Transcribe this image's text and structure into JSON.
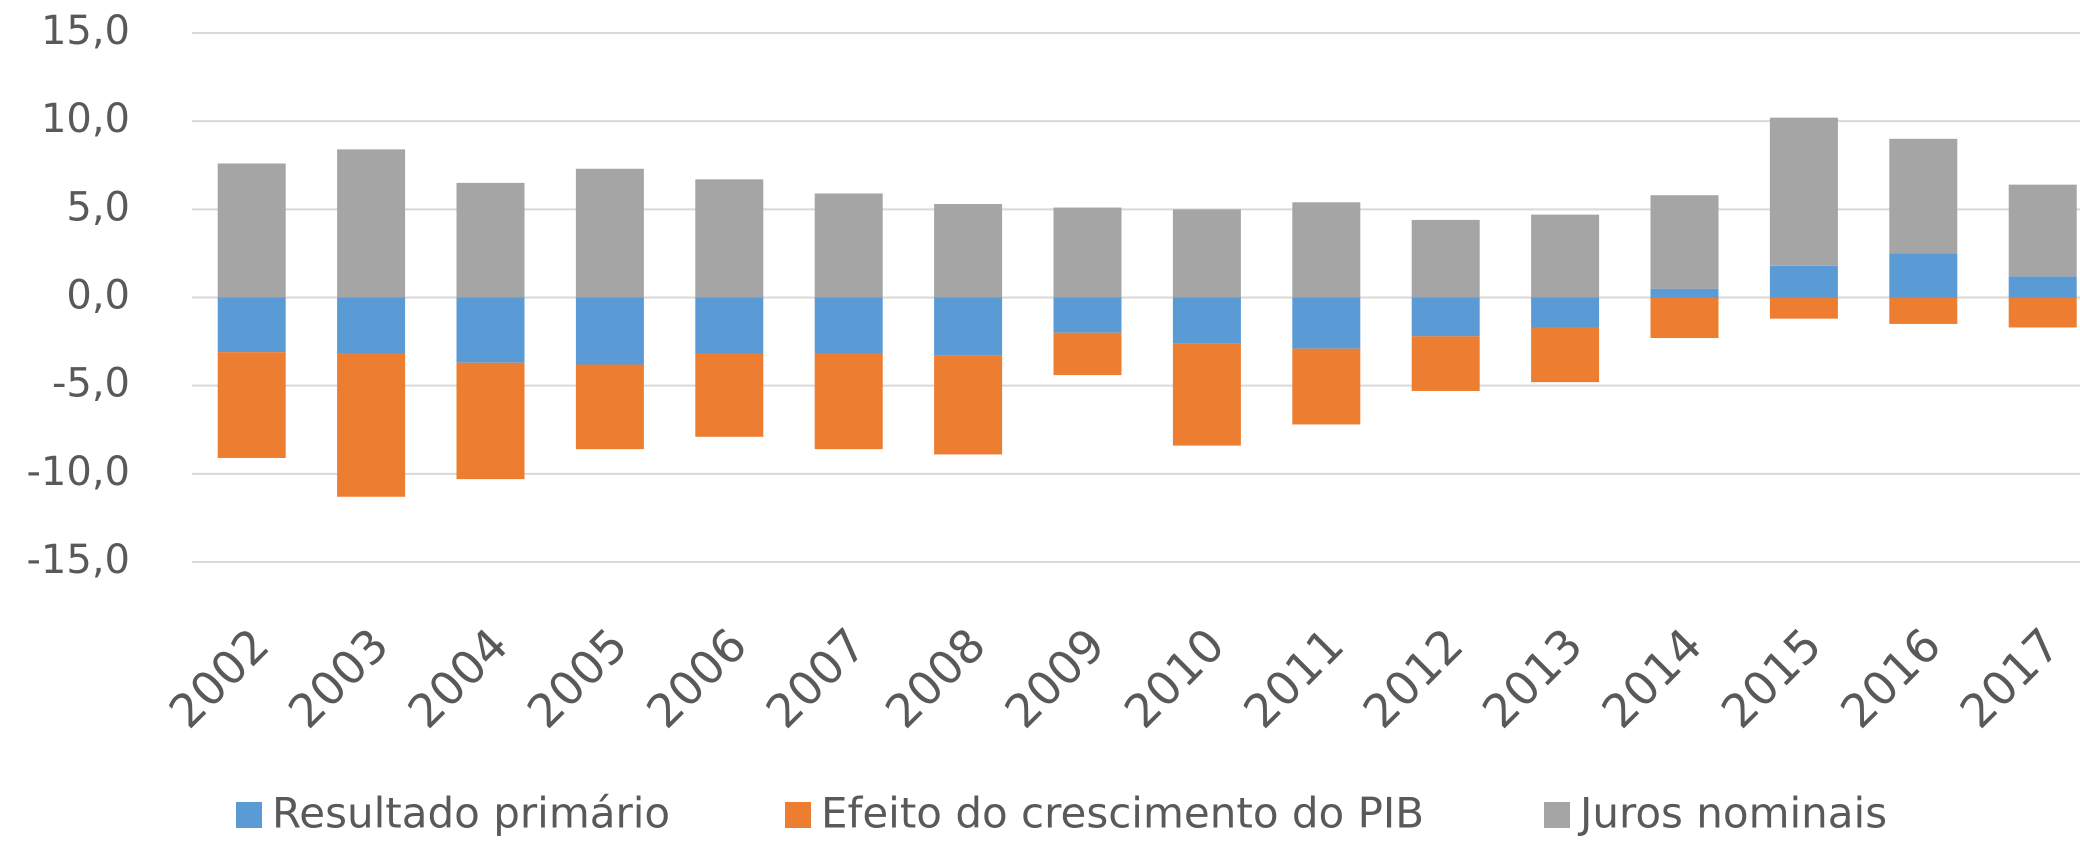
{
  "chart_data": {
    "type": "stacked_bar",
    "categories": [
      "2002",
      "2003",
      "2004",
      "2005",
      "2006",
      "2007",
      "2008",
      "2009",
      "2010",
      "2011",
      "2012",
      "2013",
      "2014",
      "2015",
      "2016",
      "2017"
    ],
    "series": [
      {
        "name": "Resultado primário",
        "color": "#5b9bd5",
        "values": [
          -3.1,
          -3.2,
          -3.7,
          -3.8,
          -3.2,
          -3.2,
          -3.3,
          -2.0,
          -2.6,
          -2.9,
          -2.2,
          -1.7,
          0.5,
          1.8,
          2.5,
          1.2
        ]
      },
      {
        "name": "Efeito do crescimento do PIB",
        "color": "#ed7d31",
        "values": [
          -6.0,
          -8.1,
          -6.6,
          -4.8,
          -4.7,
          -5.4,
          -5.6,
          -2.4,
          -5.8,
          -4.3,
          -3.1,
          -3.1,
          -2.3,
          -1.2,
          -1.5,
          -1.7
        ]
      },
      {
        "name": "Juros nominais",
        "color": "#a5a5a5",
        "values": [
          7.6,
          8.4,
          6.5,
          7.3,
          6.7,
          5.9,
          5.3,
          5.1,
          5.0,
          5.4,
          4.4,
          4.7,
          5.3,
          8.4,
          6.5,
          5.2
        ]
      }
    ],
    "ylim": [
      -15,
      15
    ],
    "yticks": [
      {
        "value": -15,
        "label": "-15,0"
      },
      {
        "value": -10,
        "label": "-10,0"
      },
      {
        "value": -5,
        "label": "-5,0"
      },
      {
        "value": 0,
        "label": "0,0"
      },
      {
        "value": 5,
        "label": "5,0"
      },
      {
        "value": 10,
        "label": "10,0"
      },
      {
        "value": 15,
        "label": "15,0"
      }
    ],
    "grid": true,
    "legend": "bottom"
  }
}
